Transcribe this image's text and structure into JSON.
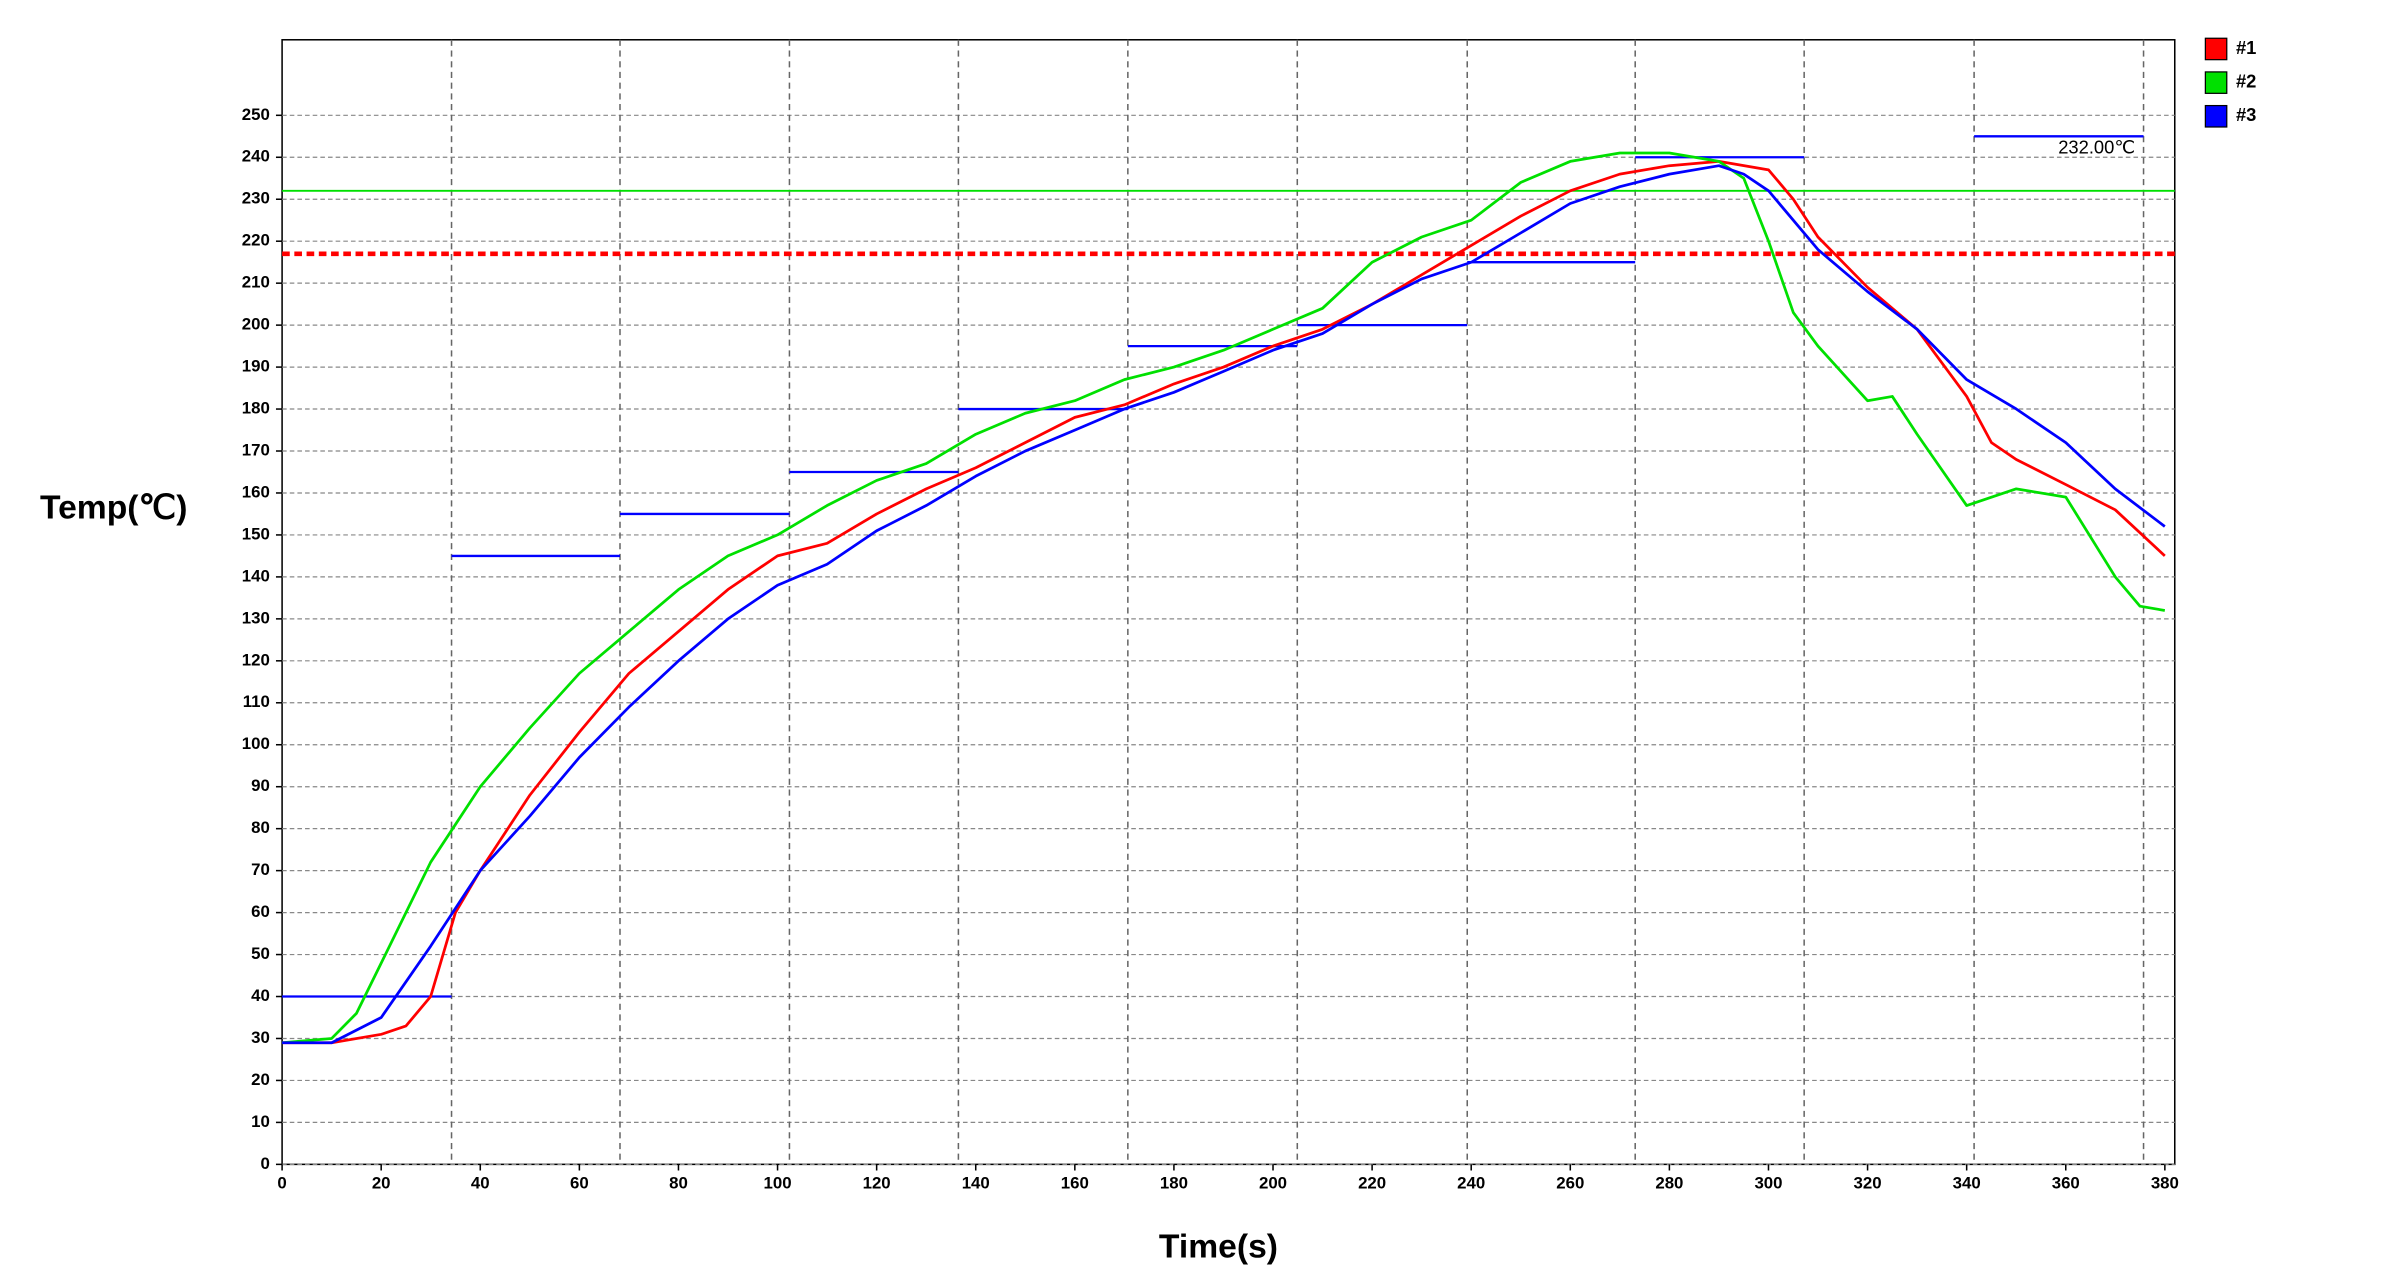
{
  "chart_data": {
    "type": "line",
    "x_label": "Time(s)",
    "y_label": "Temp(℃)",
    "xlim": [
      0,
      382
    ],
    "ylim": [
      0,
      268
    ],
    "xticks": [
      0,
      20,
      40,
      60,
      80,
      100,
      120,
      140,
      160,
      180,
      200,
      220,
      240,
      260,
      280,
      300,
      320,
      340,
      360,
      380
    ],
    "yticks": [
      0,
      10,
      20,
      30,
      40,
      50,
      60,
      70,
      80,
      90,
      100,
      110,
      120,
      130,
      140,
      150,
      160,
      170,
      180,
      190,
      200,
      210,
      220,
      230,
      240,
      250
    ],
    "grid": true,
    "legend": "right",
    "series": [
      {
        "name": "#1",
        "color": "#ff0000",
        "x": [
          0,
          10,
          20,
          25,
          30,
          35,
          40,
          50,
          60,
          70,
          80,
          90,
          100,
          110,
          120,
          130,
          140,
          150,
          160,
          170,
          180,
          190,
          200,
          210,
          220,
          230,
          240,
          250,
          260,
          270,
          280,
          290,
          300,
          305,
          310,
          320,
          330,
          340,
          345,
          350,
          360,
          370,
          380
        ],
        "values": [
          29,
          29,
          31,
          33,
          40,
          60,
          70,
          88,
          103,
          117,
          127,
          137,
          145,
          148,
          155,
          161,
          166,
          172,
          178,
          181,
          186,
          190,
          195,
          199,
          205,
          212,
          219,
          226,
          232,
          236,
          238,
          239,
          237,
          230,
          221,
          209,
          199,
          183,
          172,
          168,
          162,
          156,
          145
        ]
      },
      {
        "name": "#2",
        "color": "#00e000",
        "x": [
          0,
          10,
          15,
          20,
          30,
          40,
          50,
          60,
          70,
          80,
          90,
          100,
          110,
          120,
          130,
          140,
          150,
          160,
          170,
          180,
          190,
          200,
          210,
          220,
          230,
          240,
          250,
          260,
          270,
          280,
          290,
          295,
          300,
          305,
          310,
          320,
          325,
          330,
          340,
          350,
          360,
          370,
          375,
          380
        ],
        "values": [
          29,
          30,
          36,
          48,
          72,
          90,
          104,
          117,
          127,
          137,
          145,
          150,
          157,
          163,
          167,
          174,
          179,
          182,
          187,
          190,
          194,
          199,
          204,
          215,
          221,
          225,
          234,
          239,
          241,
          241,
          239,
          235,
          220,
          203,
          195,
          182,
          183,
          174,
          157,
          161,
          159,
          140,
          133,
          132
        ]
      },
      {
        "name": "#3",
        "color": "#0000ff",
        "x": [
          0,
          10,
          20,
          30,
          40,
          50,
          60,
          70,
          80,
          90,
          100,
          110,
          120,
          130,
          140,
          150,
          160,
          170,
          180,
          190,
          200,
          210,
          220,
          230,
          240,
          250,
          260,
          270,
          280,
          290,
          295,
          300,
          310,
          320,
          330,
          340,
          350,
          360,
          370,
          380
        ],
        "values": [
          29,
          29,
          35,
          52,
          70,
          83,
          97,
          109,
          120,
          130,
          138,
          143,
          151,
          157,
          164,
          170,
          175,
          180,
          184,
          189,
          194,
          198,
          205,
          211,
          215,
          222,
          229,
          233,
          236,
          238,
          236,
          232,
          218,
          208,
          199,
          187,
          180,
          172,
          161,
          152
        ]
      }
    ],
    "zones": {
      "color": "#0000ff",
      "edges": [
        0,
        34.2,
        68.2,
        102.4,
        136.5,
        170.7,
        204.9,
        239.2,
        273.1,
        307.2,
        341.5,
        375.7
      ],
      "setpoints": [
        40,
        145,
        155,
        165,
        180,
        195,
        200,
        215,
        240,
        null,
        245
      ]
    },
    "reference_lines": [
      {
        "value": 232,
        "color": "#00e000",
        "label": "232.00℃"
      },
      {
        "value": 217,
        "color": "#ff0000",
        "dashed": true
      }
    ]
  }
}
